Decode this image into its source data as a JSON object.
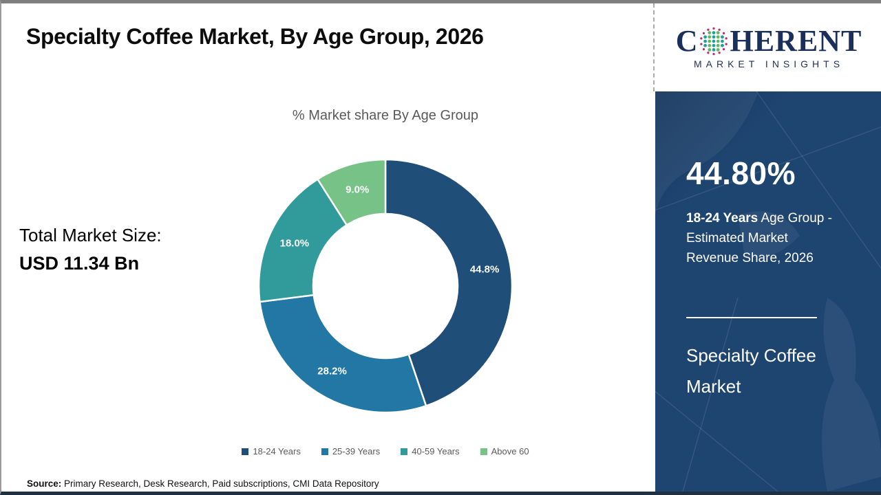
{
  "header": {
    "title": "Specialty Coffee Market, By Age Group, 2026"
  },
  "logo": {
    "brand_prefix": "C",
    "brand_suffix": "HERENT",
    "subtitle": "MARKET INSIGHTS",
    "brand_color": "#1b2f5b",
    "globe_icon": "dotted-globe",
    "globe_colors": {
      "outer_ring": "#c0266f",
      "inner_teal": "#1fa09a",
      "inner_green": "#63b75e"
    }
  },
  "chart_data": {
    "type": "pie",
    "donut": true,
    "title": "% Market share By Age Group",
    "categories": [
      "18-24 Years",
      "25-39 Years",
      "40-59 Years",
      "Above 60"
    ],
    "values": [
      44.8,
      28.2,
      18.0,
      9.0
    ],
    "labels": [
      "44.8%",
      "28.2%",
      "18.0%",
      "9.0%"
    ],
    "colors": [
      "#1f4e79",
      "#2277a4",
      "#319b9b",
      "#76c287"
    ],
    "start_angle_deg": 0,
    "direction": "clockwise",
    "legend_position": "bottom",
    "label_color": "#ffffff"
  },
  "left_panel": {
    "label": "Total Market Size:",
    "value": "USD 11.34 Bn"
  },
  "sidebar": {
    "highlight_value": "44.80%",
    "desc_bold": "18-24 Years",
    "desc_line1_rest": " Age Group -",
    "desc_line2": "Estimated Market",
    "desc_line3": "Revenue Share, 2026",
    "product_name": "Specialty Coffee Market",
    "panel_color": "#1e4470"
  },
  "footer": {
    "source_label": "Source:",
    "source_text": " Primary Research, Desk Research, Paid subscriptions, CMI Data Repository"
  }
}
